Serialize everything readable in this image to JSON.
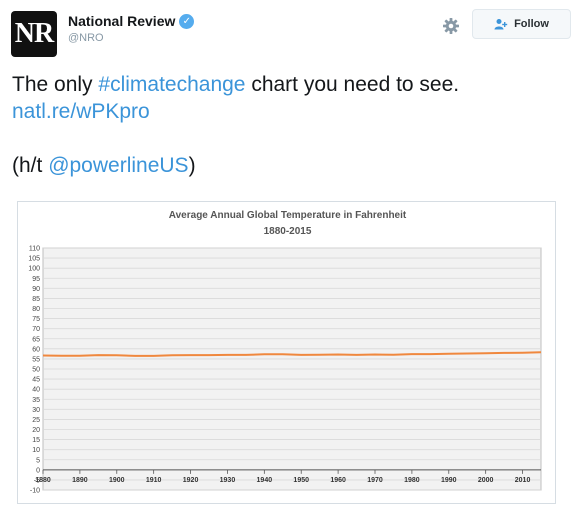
{
  "account": {
    "avatar_text": "NR",
    "name": "National Review",
    "handle": "@NRO",
    "verified_icon": "verified-badge-icon"
  },
  "actions": {
    "follow_label": "Follow",
    "settings_icon": "gear-icon",
    "follow_icon": "add-user-icon"
  },
  "tweet": {
    "line1_prefix": "The only ",
    "hashtag": "#climatechange",
    "line1_mid": " chart you need to see. ",
    "url": "natl.re/wPKpro",
    "line2_prefix": "(h/t ",
    "mention": "@powerlineUS",
    "line2_suffix": ")"
  },
  "colors": {
    "link": "#3b94d9",
    "series": "#f0883e",
    "verified": "#55acee"
  },
  "chart_data": {
    "type": "line",
    "title": "Average Annual Global Temperature in Fahrenheit",
    "subtitle": "1880-2015",
    "xlabel": "",
    "ylabel": "",
    "ylim": [
      -10,
      110
    ],
    "xlim": [
      1880,
      2015
    ],
    "yticks": [
      -10,
      -5,
      0,
      5,
      10,
      15,
      20,
      25,
      30,
      35,
      40,
      45,
      50,
      55,
      60,
      65,
      70,
      75,
      80,
      85,
      90,
      95,
      100,
      105,
      110
    ],
    "xticks": [
      1880,
      1890,
      1900,
      1910,
      1920,
      1930,
      1940,
      1950,
      1960,
      1970,
      1980,
      1990,
      2000,
      2010
    ],
    "grid": true,
    "series": [
      {
        "x": [
          1880,
          1885,
          1890,
          1895,
          1900,
          1905,
          1910,
          1915,
          1920,
          1925,
          1930,
          1935,
          1940,
          1945,
          1950,
          1955,
          1960,
          1965,
          1970,
          1975,
          1980,
          1985,
          1990,
          1995,
          2000,
          2005,
          2010,
          2015
        ],
        "values": [
          56.7,
          56.6,
          56.6,
          56.9,
          56.8,
          56.5,
          56.5,
          56.8,
          56.9,
          56.9,
          57.0,
          57.0,
          57.3,
          57.3,
          57.0,
          57.1,
          57.2,
          57.0,
          57.2,
          57.1,
          57.4,
          57.4,
          57.6,
          57.7,
          57.8,
          58.0,
          58.1,
          58.3
        ]
      }
    ]
  }
}
